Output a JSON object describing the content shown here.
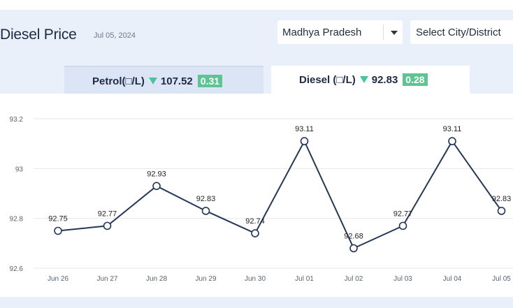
{
  "header": {
    "title": "Diesel Price",
    "date": "Jul 05, 2024",
    "state_select": {
      "value": "Madhya Pradesh"
    },
    "city_select": {
      "placeholder": "Select City/District"
    }
  },
  "tabs": [
    {
      "label": "Petrol(□/L)",
      "price": "107.52",
      "change": "0.31",
      "trend": "down"
    },
    {
      "label": "Diesel (□/L)",
      "price": "92.83",
      "change": "0.28",
      "trend": "down",
      "active": true
    }
  ],
  "colors": {
    "accent": "#243757",
    "change_badge": "#5fc493",
    "down_arrow": "#4cc49a",
    "active_tab": "#ffffff",
    "inactive_tab": "#dbe5f6"
  },
  "chart_data": {
    "type": "line",
    "categories": [
      "Jun 26",
      "Jun 27",
      "Jun 28",
      "Jun 29",
      "Jun 30",
      "Jul 01",
      "Jul 02",
      "Jul 03",
      "Jul 04",
      "Jul 05"
    ],
    "values": [
      92.75,
      92.77,
      92.93,
      92.83,
      92.74,
      93.11,
      92.68,
      92.77,
      93.11,
      92.83
    ],
    "data_labels": [
      "92.75",
      "92.77",
      "92.93",
      "92.83",
      "92.74",
      "93.11",
      "92.68",
      "92.77",
      "93.11",
      "92.83"
    ],
    "yticks": [
      "92.6",
      "92.8",
      "93",
      "93.2"
    ],
    "ylim": [
      92.6,
      93.2
    ],
    "grid": true,
    "legend": "none"
  }
}
